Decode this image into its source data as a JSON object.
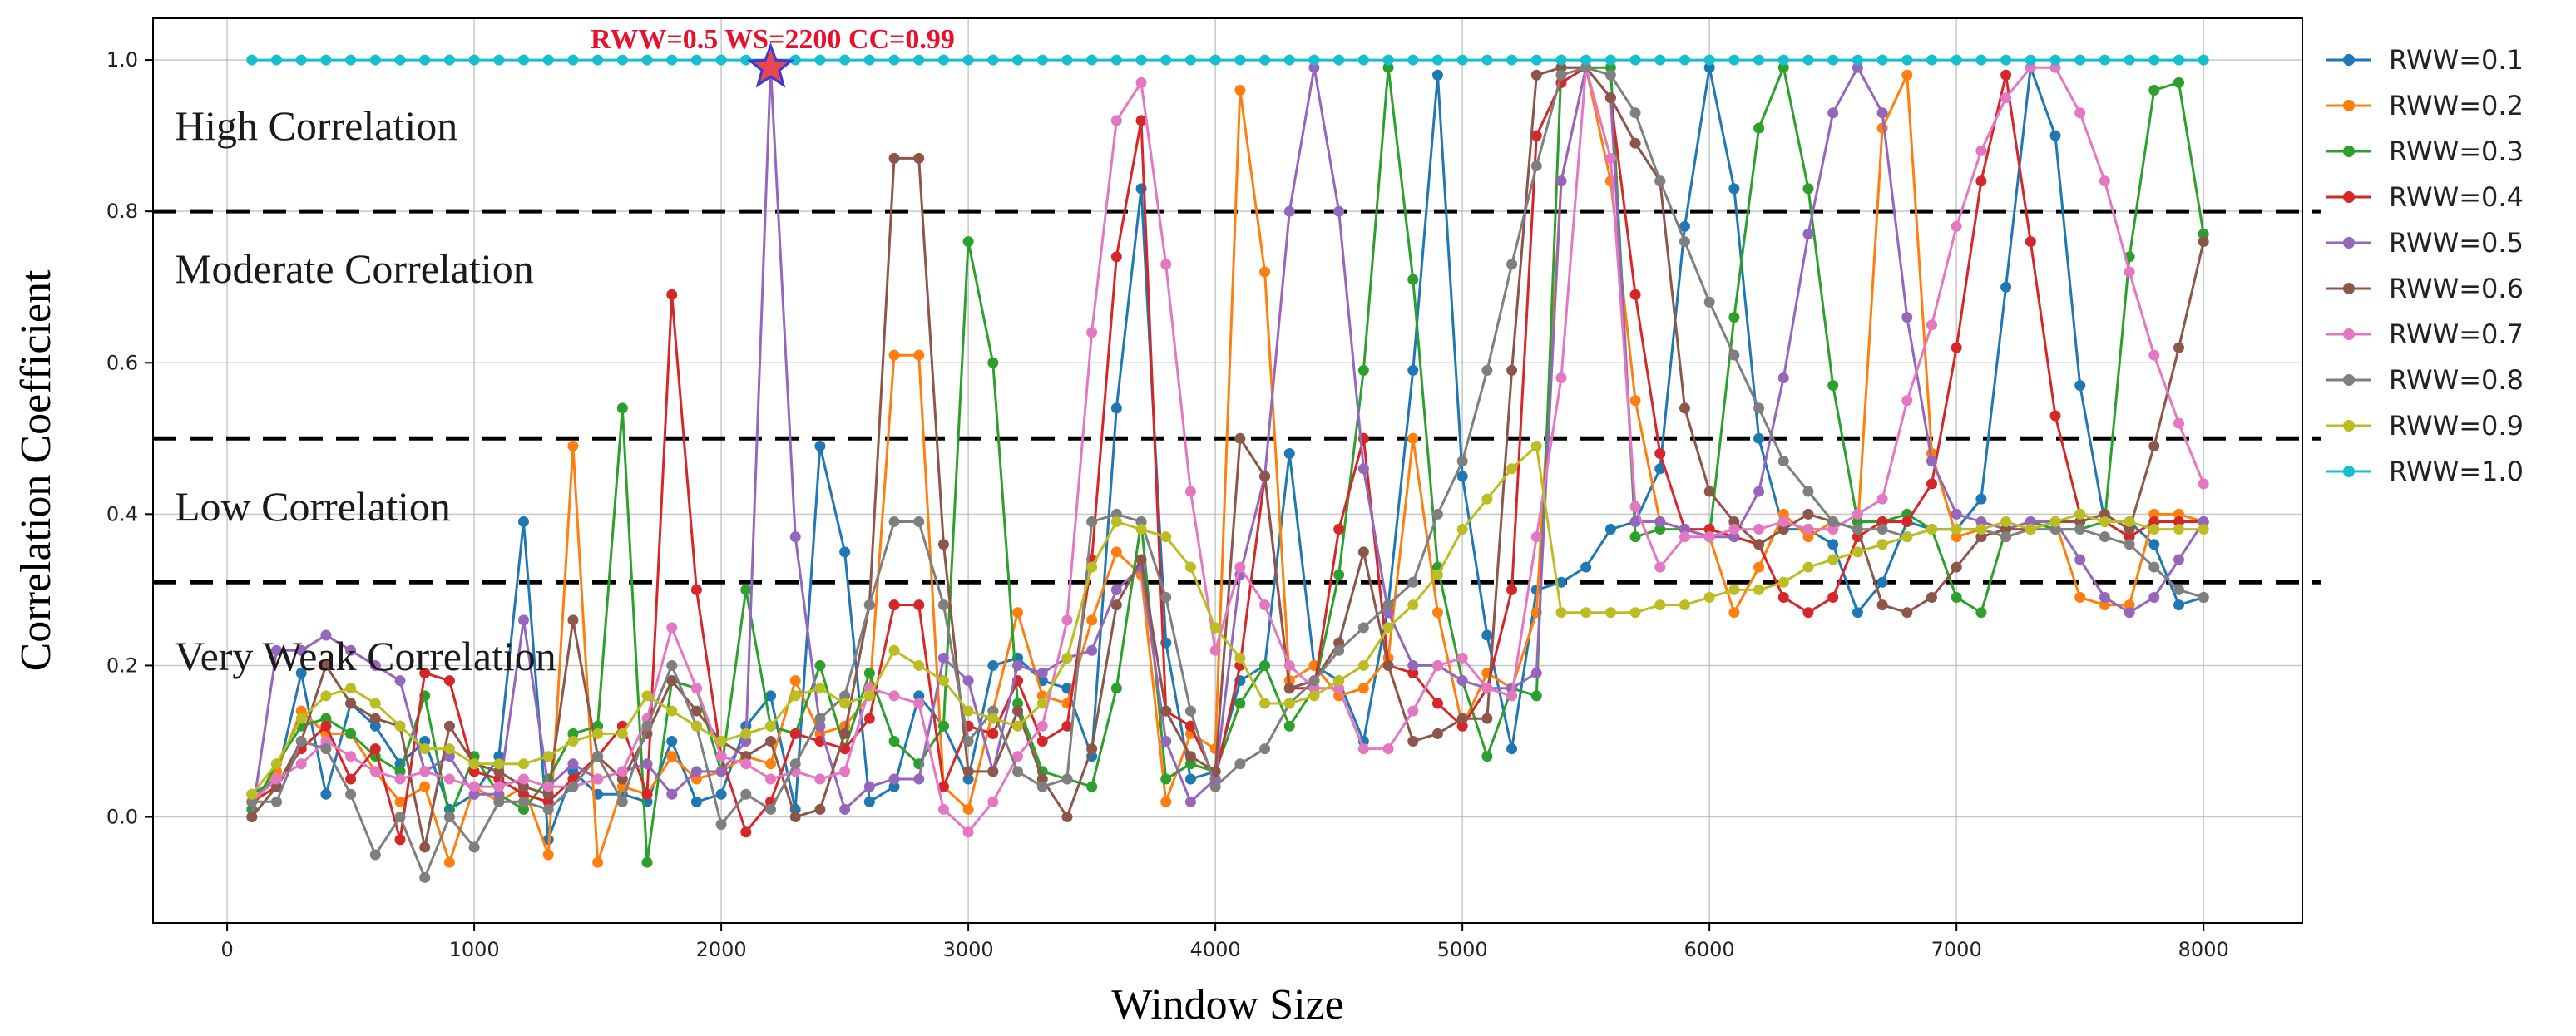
{
  "chart_data": {
    "type": "line",
    "title": "",
    "xlabel": "Window Size",
    "ylabel": "Correlation Coefficient",
    "xlim": [
      -300,
      8400
    ],
    "ylim": [
      -0.14,
      1.055
    ],
    "x_ticks": [
      0,
      1000,
      2000,
      3000,
      4000,
      5000,
      6000,
      7000,
      8000
    ],
    "y_ticks": [
      0.0,
      0.2,
      0.4,
      0.6,
      0.8,
      1.0
    ],
    "grid": true,
    "legend_position": "outside-right",
    "thresholds": [
      {
        "y": 0.8,
        "label": "High Correlation"
      },
      {
        "y": 0.5,
        "label": "Moderate Correlation"
      },
      {
        "y": 0.31,
        "label": "Low Correlation"
      },
      {
        "y": null,
        "label": "Very Weak Correlation"
      }
    ],
    "annotation": {
      "text": "RWW=0.5  WS=2200 CC=0.99",
      "x": 2200,
      "y": 0.99
    },
    "x_start": 100,
    "x_step": 100,
    "series": [
      {
        "name": "RWW=0.1",
        "color": "#1f77b4",
        "values": [
          0.03,
          0.05,
          0.19,
          0.03,
          0.15,
          0.12,
          0.07,
          0.1,
          0.01,
          0.03,
          0.08,
          0.39,
          -0.03,
          0.06,
          0.03,
          0.03,
          0.02,
          0.1,
          0.02,
          0.03,
          0.12,
          0.16,
          0.01,
          0.49,
          0.35,
          0.02,
          0.04,
          0.16,
          0.12,
          0.05,
          0.2,
          0.21,
          0.18,
          0.17,
          0.08,
          0.54,
          0.83,
          0.23,
          0.05,
          0.06,
          0.18,
          0.2,
          0.48,
          0.2,
          0.18,
          0.1,
          0.28,
          0.59,
          0.98,
          0.45,
          0.24,
          0.09,
          0.3,
          0.31,
          0.33,
          0.38,
          0.39,
          0.46,
          0.78,
          0.99,
          0.83,
          0.5,
          0.38,
          0.38,
          0.36,
          0.27,
          0.31,
          0.39,
          0.38,
          0.38,
          0.42,
          0.7,
          0.99,
          0.9,
          0.57,
          0.39,
          0.39,
          0.36,
          0.28,
          0.29
        ]
      },
      {
        "name": "RWW=0.2",
        "color": "#ff7f0e",
        "values": [
          0.02,
          0.06,
          0.14,
          0.11,
          0.11,
          0.06,
          0.02,
          0.04,
          -0.06,
          0.04,
          0.02,
          0.04,
          -0.05,
          0.49,
          -0.06,
          0.04,
          0.03,
          0.08,
          0.05,
          0.06,
          0.08,
          0.07,
          0.18,
          0.11,
          0.12,
          0.16,
          0.61,
          0.61,
          0.04,
          0.01,
          0.14,
          0.27,
          0.16,
          0.15,
          0.26,
          0.35,
          0.32,
          0.02,
          0.11,
          0.09,
          0.96,
          0.72,
          0.18,
          0.2,
          0.16,
          0.17,
          0.21,
          0.5,
          0.27,
          0.12,
          0.19,
          0.17,
          0.27,
          0.84,
          0.99,
          0.84,
          0.55,
          0.39,
          0.38,
          0.37,
          0.27,
          0.33,
          0.4,
          0.37,
          0.39,
          0.38,
          0.91,
          0.98,
          0.48,
          0.37,
          0.38,
          0.37,
          0.38,
          0.39,
          0.29,
          0.28,
          0.28,
          0.4,
          0.4,
          0.39
        ]
      },
      {
        "name": "RWW=0.3",
        "color": "#2ca02c",
        "values": [
          0.01,
          0.07,
          0.12,
          0.13,
          0.11,
          0.08,
          0.06,
          0.16,
          0.0,
          0.08,
          0.03,
          0.01,
          0.05,
          0.11,
          0.12,
          0.54,
          -0.06,
          0.18,
          0.17,
          0.06,
          0.3,
          0.12,
          0.11,
          0.2,
          0.09,
          0.19,
          0.1,
          0.07,
          0.12,
          0.76,
          0.6,
          0.15,
          0.06,
          0.05,
          0.04,
          0.17,
          0.39,
          0.05,
          0.07,
          0.06,
          0.15,
          0.2,
          0.12,
          0.17,
          0.32,
          0.59,
          0.99,
          0.71,
          0.33,
          0.18,
          0.08,
          0.17,
          0.16,
          0.99,
          0.99,
          0.99,
          0.37,
          0.38,
          0.38,
          0.37,
          0.66,
          0.91,
          0.99,
          0.83,
          0.57,
          0.39,
          0.39,
          0.4,
          0.38,
          0.29,
          0.27,
          0.38,
          0.39,
          0.38,
          0.38,
          0.39,
          0.74,
          0.96,
          0.97,
          0.77
        ]
      },
      {
        "name": "RWW=0.4",
        "color": "#d62728",
        "values": [
          0.02,
          0.04,
          0.09,
          0.12,
          0.05,
          0.09,
          -0.03,
          0.19,
          0.18,
          0.06,
          0.05,
          0.03,
          0.02,
          0.05,
          0.08,
          0.12,
          0.03,
          0.69,
          0.3,
          0.08,
          -0.02,
          0.02,
          0.11,
          0.1,
          0.09,
          0.13,
          0.28,
          0.28,
          0.04,
          0.12,
          0.11,
          0.18,
          0.1,
          0.12,
          0.34,
          0.74,
          0.92,
          0.14,
          0.12,
          0.05,
          0.2,
          0.45,
          0.17,
          0.17,
          0.38,
          0.5,
          0.2,
          0.19,
          0.15,
          0.12,
          0.17,
          0.3,
          0.9,
          0.97,
          0.99,
          0.95,
          0.69,
          0.48,
          0.38,
          0.38,
          0.37,
          0.36,
          0.29,
          0.27,
          0.29,
          0.37,
          0.39,
          0.39,
          0.44,
          0.62,
          0.84,
          0.98,
          0.76,
          0.53,
          0.4,
          0.39,
          0.37,
          0.39,
          0.39,
          0.39
        ]
      },
      {
        "name": "RWW=0.5",
        "color": "#9467bd",
        "values": [
          0.0,
          0.22,
          0.22,
          0.24,
          0.22,
          0.2,
          0.18,
          0.06,
          0.08,
          0.03,
          0.03,
          0.26,
          0.04,
          0.07,
          0.05,
          0.06,
          0.07,
          0.03,
          0.06,
          0.06,
          0.1,
          0.99,
          0.37,
          0.12,
          0.01,
          0.04,
          0.05,
          0.05,
          0.21,
          0.18,
          0.06,
          0.2,
          0.19,
          0.21,
          0.22,
          0.3,
          0.33,
          0.1,
          0.02,
          0.05,
          0.32,
          0.45,
          0.8,
          0.99,
          0.8,
          0.46,
          0.27,
          0.2,
          0.2,
          0.18,
          0.17,
          0.17,
          0.19,
          0.84,
          0.99,
          0.95,
          0.39,
          0.39,
          0.38,
          0.37,
          0.37,
          0.43,
          0.58,
          0.77,
          0.93,
          0.99,
          0.93,
          0.66,
          0.47,
          0.4,
          0.39,
          0.38,
          0.39,
          0.39,
          0.34,
          0.29,
          0.27,
          0.29,
          0.34,
          0.39
        ]
      },
      {
        "name": "RWW=0.6",
        "color": "#8c564b",
        "values": [
          0.0,
          0.04,
          0.1,
          0.2,
          0.15,
          0.13,
          0.12,
          -0.04,
          0.12,
          0.07,
          0.06,
          0.04,
          0.03,
          0.26,
          0.08,
          0.05,
          0.11,
          0.18,
          0.14,
          0.1,
          0.08,
          0.1,
          0.0,
          0.01,
          0.11,
          0.28,
          0.87,
          0.87,
          0.36,
          0.06,
          0.06,
          0.14,
          0.05,
          0.0,
          0.09,
          0.28,
          0.34,
          0.14,
          0.08,
          0.06,
          0.5,
          0.45,
          0.17,
          0.18,
          0.23,
          0.35,
          0.2,
          0.1,
          0.11,
          0.13,
          0.13,
          0.59,
          0.98,
          0.99,
          0.99,
          0.95,
          0.89,
          0.84,
          0.54,
          0.43,
          0.39,
          0.36,
          0.38,
          0.4,
          0.39,
          0.38,
          0.28,
          0.27,
          0.29,
          0.33,
          0.37,
          0.38,
          0.38,
          0.39,
          0.39,
          0.4,
          0.38,
          0.49,
          0.62,
          0.76
        ]
      },
      {
        "name": "RWW=0.7",
        "color": "#e377c2",
        "values": [
          0.02,
          0.05,
          0.07,
          0.1,
          0.08,
          0.06,
          0.05,
          0.06,
          0.05,
          0.04,
          0.04,
          0.05,
          0.04,
          0.04,
          0.05,
          0.06,
          0.13,
          0.25,
          0.17,
          0.08,
          0.07,
          0.05,
          0.06,
          0.05,
          0.06,
          0.17,
          0.16,
          0.15,
          0.01,
          -0.02,
          0.02,
          0.08,
          0.12,
          0.26,
          0.64,
          0.92,
          0.97,
          0.73,
          0.43,
          0.22,
          0.33,
          0.28,
          0.2,
          0.17,
          0.17,
          0.09,
          0.09,
          0.14,
          0.2,
          0.21,
          0.17,
          0.16,
          0.37,
          0.58,
          0.99,
          0.87,
          0.41,
          0.33,
          0.37,
          0.37,
          0.38,
          0.38,
          0.39,
          0.38,
          0.38,
          0.4,
          0.42,
          0.55,
          0.65,
          0.78,
          0.88,
          0.95,
          0.99,
          0.99,
          0.93,
          0.84,
          0.72,
          0.61,
          0.52,
          0.44
        ]
      },
      {
        "name": "RWW=0.8",
        "color": "#7f7f7f",
        "values": [
          0.02,
          0.02,
          0.1,
          0.09,
          0.03,
          -0.05,
          0.0,
          -0.08,
          0.0,
          -0.04,
          0.02,
          0.02,
          0.01,
          0.04,
          0.08,
          0.02,
          0.12,
          0.2,
          0.12,
          -0.01,
          0.03,
          0.01,
          0.07,
          0.13,
          0.16,
          0.28,
          0.39,
          0.39,
          0.28,
          0.1,
          0.14,
          0.06,
          0.04,
          0.05,
          0.39,
          0.4,
          0.39,
          0.29,
          0.14,
          0.04,
          0.07,
          0.09,
          0.15,
          0.18,
          0.22,
          0.25,
          0.28,
          0.31,
          0.4,
          0.47,
          0.59,
          0.73,
          0.86,
          0.98,
          0.99,
          0.98,
          0.93,
          0.84,
          0.76,
          0.68,
          0.61,
          0.54,
          0.47,
          0.43,
          0.39,
          0.38,
          0.38,
          0.37,
          0.38,
          0.38,
          0.38,
          0.37,
          0.38,
          0.38,
          0.38,
          0.37,
          0.36,
          0.33,
          0.3,
          0.29
        ]
      },
      {
        "name": "RWW=0.9",
        "color": "#bcbd22",
        "values": [
          0.03,
          0.07,
          0.13,
          0.16,
          0.17,
          0.15,
          0.12,
          0.09,
          0.09,
          0.07,
          0.07,
          0.07,
          0.08,
          0.1,
          0.11,
          0.11,
          0.16,
          0.14,
          0.12,
          0.1,
          0.11,
          0.12,
          0.16,
          0.17,
          0.15,
          0.16,
          0.22,
          0.2,
          0.18,
          0.14,
          0.13,
          0.12,
          0.15,
          0.21,
          0.33,
          0.39,
          0.38,
          0.37,
          0.33,
          0.25,
          0.21,
          0.15,
          0.15,
          0.16,
          0.18,
          0.2,
          0.25,
          0.28,
          0.32,
          0.38,
          0.42,
          0.46,
          0.49,
          0.27,
          0.27,
          0.27,
          0.27,
          0.28,
          0.28,
          0.29,
          0.3,
          0.3,
          0.31,
          0.33,
          0.34,
          0.35,
          0.36,
          0.37,
          0.38,
          0.38,
          0.38,
          0.39,
          0.38,
          0.39,
          0.4,
          0.39,
          0.39,
          0.38,
          0.38,
          0.38
        ]
      },
      {
        "name": "RWW=1.0",
        "color": "#17becf",
        "values": [
          1.0,
          1.0,
          1.0,
          1.0,
          1.0,
          1.0,
          1.0,
          1.0,
          1.0,
          1.0,
          1.0,
          1.0,
          1.0,
          1.0,
          1.0,
          1.0,
          1.0,
          1.0,
          1.0,
          1.0,
          1.0,
          1.0,
          1.0,
          1.0,
          1.0,
          1.0,
          1.0,
          1.0,
          1.0,
          1.0,
          1.0,
          1.0,
          1.0,
          1.0,
          1.0,
          1.0,
          1.0,
          1.0,
          1.0,
          1.0,
          1.0,
          1.0,
          1.0,
          1.0,
          1.0,
          1.0,
          1.0,
          1.0,
          1.0,
          1.0,
          1.0,
          1.0,
          1.0,
          1.0,
          1.0,
          1.0,
          1.0,
          1.0,
          1.0,
          1.0,
          1.0,
          1.0,
          1.0,
          1.0,
          1.0,
          1.0,
          1.0,
          1.0,
          1.0,
          1.0,
          1.0,
          1.0,
          1.0,
          1.0,
          1.0,
          1.0,
          1.0,
          1.0,
          1.0,
          1.0
        ]
      }
    ]
  }
}
